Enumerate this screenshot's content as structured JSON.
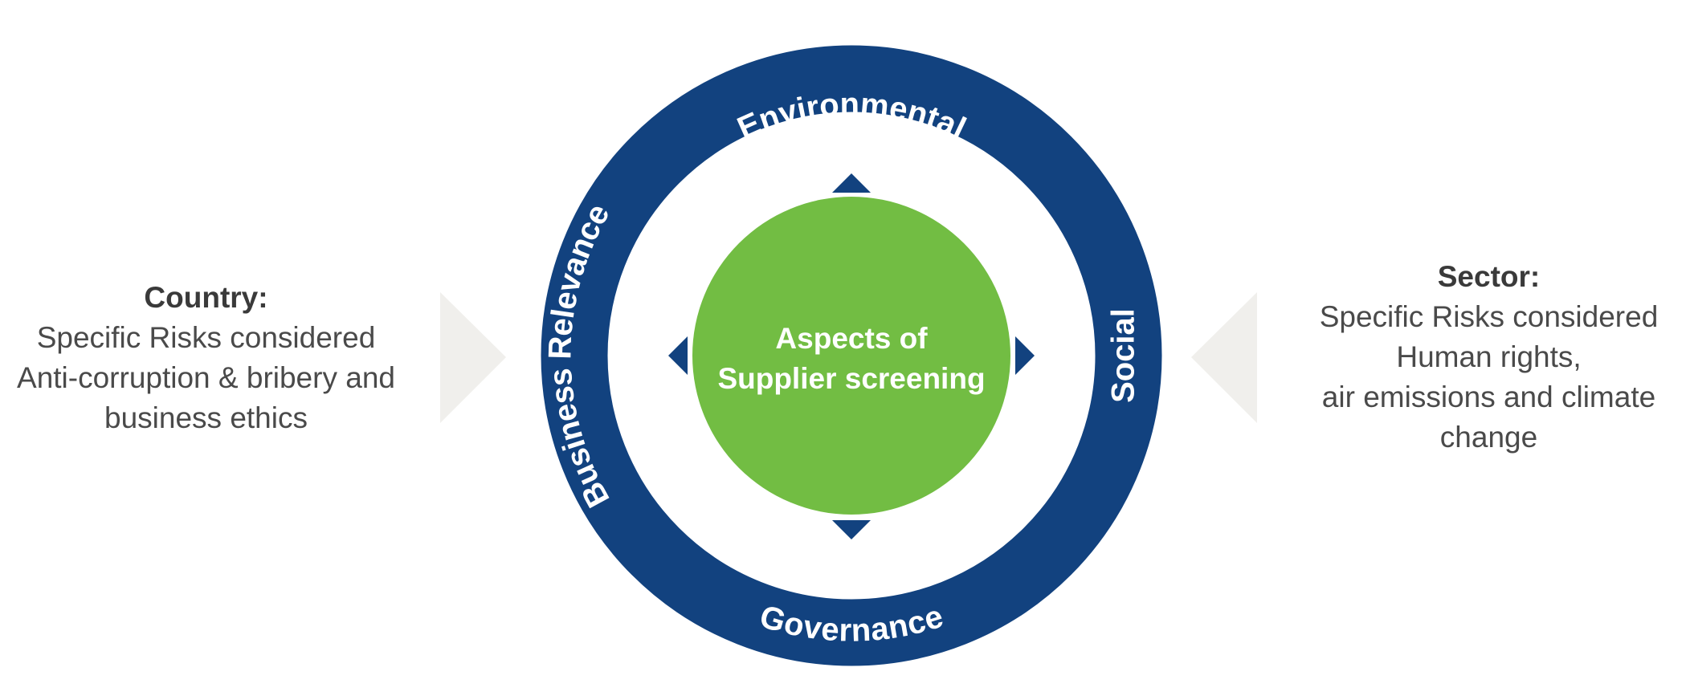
{
  "colors": {
    "ring": "#12427f",
    "core": "#72bd43",
    "ring_text": "#ffffff",
    "side_arrow": "#f0efec",
    "body_text": "#4a4a4a"
  },
  "ring": {
    "top_label": "Environmental",
    "bottom_label": "Governance",
    "left_label": "Business Relevance",
    "right_label": "Social"
  },
  "core": {
    "line1": "Aspects of",
    "line2": "Supplier screening"
  },
  "country": {
    "heading": "Country:",
    "lines": [
      "Specific Risks considered",
      "Anti-corruption & bribery and",
      "business ethics"
    ]
  },
  "sector": {
    "heading": "Sector:",
    "lines": [
      "Specific Risks considered",
      "Human rights,",
      "air emissions and climate",
      "change"
    ]
  },
  "icons": {
    "pointers": [
      "triangle-up-icon",
      "triangle-down-icon",
      "triangle-left-icon",
      "triangle-right-icon"
    ],
    "side_arrows": [
      "chevron-right-icon",
      "chevron-left-icon"
    ]
  }
}
